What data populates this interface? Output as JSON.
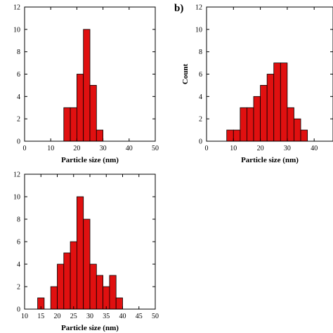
{
  "chart_data": [
    {
      "type": "bar",
      "panel_label": "",
      "xlabel": "Particle size (nm)",
      "ylabel": "",
      "xlim": [
        0,
        50
      ],
      "ylim": [
        0,
        12
      ],
      "xticks": [
        0,
        10,
        20,
        30,
        40,
        50
      ],
      "yticks": [
        0,
        2,
        4,
        6,
        8,
        10,
        12
      ],
      "bin_width": 2.5,
      "bins": [
        {
          "x": 15,
          "count": 3
        },
        {
          "x": 17.5,
          "count": 3
        },
        {
          "x": 20,
          "count": 6
        },
        {
          "x": 22.5,
          "count": 10
        },
        {
          "x": 25,
          "count": 5
        },
        {
          "x": 27.5,
          "count": 1
        }
      ],
      "color": "#e01010"
    },
    {
      "type": "bar",
      "panel_label": "b)",
      "xlabel": "Particle size (nm)",
      "ylabel": "Count",
      "xlim": [
        0,
        47
      ],
      "ylim": [
        0,
        12
      ],
      "xticks": [
        0,
        10,
        20,
        30,
        40
      ],
      "yticks": [
        0,
        2,
        4,
        6,
        8,
        10,
        12
      ],
      "bin_width": 2.5,
      "bins": [
        {
          "x": 7.5,
          "count": 1
        },
        {
          "x": 10,
          "count": 1
        },
        {
          "x": 12.5,
          "count": 3
        },
        {
          "x": 15,
          "count": 3
        },
        {
          "x": 17.5,
          "count": 4
        },
        {
          "x": 20,
          "count": 5
        },
        {
          "x": 22.5,
          "count": 6
        },
        {
          "x": 25,
          "count": 7
        },
        {
          "x": 27.5,
          "count": 7
        },
        {
          "x": 30,
          "count": 3
        },
        {
          "x": 32.5,
          "count": 2
        },
        {
          "x": 35,
          "count": 1
        }
      ],
      "color": "#e01010"
    },
    {
      "type": "bar",
      "panel_label": "",
      "xlabel": "Particle size (nm)",
      "ylabel": "",
      "xlim": [
        10,
        50
      ],
      "ylim": [
        0,
        12
      ],
      "xticks": [
        10,
        15,
        20,
        25,
        30,
        35,
        40,
        45,
        50
      ],
      "yticks": [
        0,
        2,
        4,
        6,
        8,
        10,
        12
      ],
      "bin_width": 2,
      "bins": [
        {
          "x": 14,
          "count": 1
        },
        {
          "x": 18,
          "count": 2
        },
        {
          "x": 20,
          "count": 4
        },
        {
          "x": 22,
          "count": 5
        },
        {
          "x": 24,
          "count": 6
        },
        {
          "x": 26,
          "count": 10
        },
        {
          "x": 28,
          "count": 8
        },
        {
          "x": 30,
          "count": 4
        },
        {
          "x": 32,
          "count": 3
        },
        {
          "x": 34,
          "count": 2
        },
        {
          "x": 36,
          "count": 3
        },
        {
          "x": 38,
          "count": 1
        }
      ],
      "color": "#e01010"
    }
  ]
}
